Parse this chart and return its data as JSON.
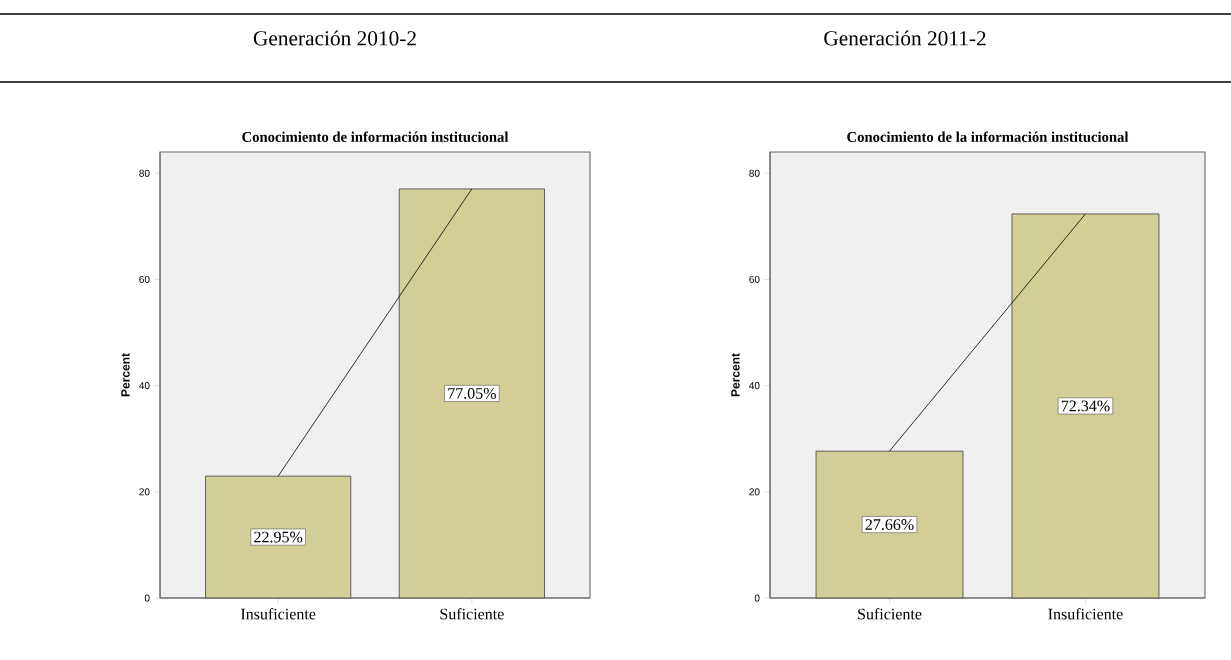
{
  "chart_data": [
    {
      "type": "bar",
      "title": "Generación 2010-2",
      "subtitle": "Conocimiento de información institucional",
      "ylabel": "Percent",
      "categories": [
        "Insuficiente",
        "Suficiente"
      ],
      "ylim": [
        0,
        84
      ],
      "yticks": [
        0,
        20,
        40,
        60,
        80
      ],
      "series": [
        {
          "type": "bar",
          "color": "#d3cd97",
          "values": [
            22.95,
            77.05
          ],
          "value_labels": [
            "22.95%",
            "77.05%"
          ]
        },
        {
          "type": "line",
          "color": "#000000",
          "values": [
            22.95,
            77.05
          ]
        }
      ]
    },
    {
      "type": "bar",
      "title": "Generación 2011-2",
      "subtitle": "Conocimiento de la información institucional",
      "ylabel": "Percent",
      "categories": [
        "Suficiente",
        "Insuficiente"
      ],
      "ylim": [
        0,
        84
      ],
      "yticks": [
        0,
        20,
        40,
        60,
        80
      ],
      "series": [
        {
          "type": "bar",
          "color": "#d3cd97",
          "values": [
            27.66,
            72.34
          ],
          "value_labels": [
            "27.66%",
            "72.34%"
          ]
        },
        {
          "type": "line",
          "color": "#000000",
          "values": [
            27.66,
            72.34
          ]
        }
      ]
    }
  ]
}
